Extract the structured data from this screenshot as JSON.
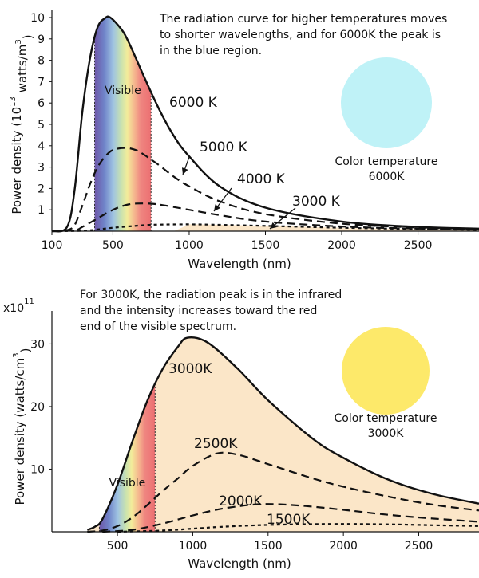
{
  "chart_data": [
    {
      "type": "line",
      "annotation": [
        "The radiation curve for higher temperatures moves",
        "to shorter wavelengths, and for 6000K the peak is",
        "in the blue region."
      ],
      "xlabel": "Wavelength (nm)",
      "ylabel": {
        "base": "Power density (10",
        "exp": "13",
        "mid": " watts/m",
        "exp2": "3",
        "end": ")"
      },
      "xlim": [
        100,
        2900
      ],
      "ylim": [
        0,
        10
      ],
      "xticks": [
        100,
        500,
        1000,
        1500,
        2000,
        2500
      ],
      "yticks": [
        1,
        2,
        3,
        4,
        5,
        6,
        7,
        8,
        9,
        10
      ],
      "visible_band": [
        380,
        750
      ],
      "visible_label": "Visible",
      "swatch_color": "#bff2f7",
      "swatch_caption": [
        "Color temperature",
        "6000K"
      ],
      "series": [
        {
          "name": "6000 K",
          "style": "solid",
          "x": [
            100,
            200,
            250,
            300,
            350,
            400,
            450,
            483,
            550,
            600,
            700,
            800,
            900,
            1000,
            1200,
            1500,
            2000,
            2500,
            2900
          ],
          "y": [
            0,
            0.2,
            2.0,
            5.6,
            8.1,
            9.55,
            9.98,
            10.0,
            9.5,
            8.9,
            7.3,
            5.75,
            4.45,
            3.5,
            2.1,
            1.1,
            0.45,
            0.2,
            0.12
          ]
        },
        {
          "name": "5000 K",
          "style": "dashed",
          "x": [
            100,
            200,
            250,
            300,
            350,
            400,
            450,
            500,
            580,
            650,
            700,
            800,
            900,
            1000,
            1200,
            1500,
            2000,
            2500,
            2900
          ],
          "y": [
            0,
            0.05,
            0.3,
            1.2,
            2.2,
            3.0,
            3.5,
            3.8,
            3.9,
            3.8,
            3.6,
            3.1,
            2.55,
            2.1,
            1.4,
            0.8,
            0.35,
            0.17,
            0.1
          ]
        },
        {
          "name": "4000 K",
          "style": "dashed",
          "x": [
            100,
            250,
            300,
            400,
            500,
            600,
            700,
            800,
            1000,
            1200,
            1500,
            2000,
            2500,
            2900
          ],
          "y": [
            0,
            0.05,
            0.2,
            0.6,
            1.0,
            1.25,
            1.3,
            1.25,
            1.0,
            0.75,
            0.45,
            0.22,
            0.12,
            0.07
          ]
        },
        {
          "name": "3000 K",
          "style": "dotted",
          "x": [
            100,
            300,
            400,
            500,
            700,
            800,
            1000,
            1200,
            1500,
            2000,
            2500,
            2900
          ],
          "y": [
            0,
            0.02,
            0.08,
            0.16,
            0.28,
            0.31,
            0.32,
            0.3,
            0.25,
            0.16,
            0.1,
            0.06
          ]
        }
      ]
    },
    {
      "type": "line",
      "annotation": [
        "For 3000K, the radiation peak is in the infrared",
        "and the intensity increases toward the red",
        "end of the visible spectrum."
      ],
      "xlabel": "Wavelength (nm)",
      "ylabel": {
        "base": "Power density (watts/cm",
        "exp": "3",
        "mid": "",
        "exp2": "",
        "end": ")"
      },
      "y_multiplier": {
        "base": "x10",
        "exp": "11"
      },
      "xlim": [
        65,
        2900
      ],
      "ylim": [
        0,
        34
      ],
      "xticks": [
        500,
        1000,
        1500,
        2000,
        2500
      ],
      "yticks": [
        10,
        20,
        30
      ],
      "visible_band": [
        380,
        750
      ],
      "visible_label": "Visible",
      "swatch_color": "#fde96a",
      "swatch_caption": [
        "Color temperature",
        "3000K"
      ],
      "series": [
        {
          "name": "3000K",
          "style": "solid",
          "x": [
            300,
            350,
            400,
            500,
            600,
            700,
            800,
            900,
            966,
            1100,
            1300,
            1500,
            1800,
            2000,
            2300,
            2600,
            2900
          ],
          "y": [
            0.3,
            0.8,
            2.0,
            7.5,
            14.5,
            21.0,
            26.0,
            29.5,
            31.0,
            30.2,
            26.0,
            21.0,
            14.8,
            11.8,
            8.3,
            6.0,
            4.5
          ]
        },
        {
          "name": "2500K",
          "style": "dashed",
          "x": [
            300,
            400,
            500,
            600,
            700,
            800,
            900,
            1000,
            1159,
            1300,
            1500,
            1800,
            2000,
            2300,
            2600,
            2900
          ],
          "y": [
            0,
            0.2,
            0.9,
            2.3,
            4.3,
            6.5,
            8.5,
            10.5,
            12.5,
            12.3,
            10.8,
            8.5,
            7.2,
            5.6,
            4.3,
            3.4
          ]
        },
        {
          "name": "2000K",
          "style": "dashed",
          "x": [
            400,
            600,
            800,
            1000,
            1200,
            1449,
            1700,
            2000,
            2300,
            2600,
            2900
          ],
          "y": [
            0,
            0.3,
            1.3,
            2.6,
            3.7,
            4.4,
            4.2,
            3.5,
            2.7,
            2.1,
            1.6
          ]
        },
        {
          "name": "1500K",
          "style": "dotted",
          "x": [
            500,
            800,
            1000,
            1200,
            1500,
            1932,
            2300,
            2600,
            2900
          ],
          "y": [
            0,
            0.2,
            0.5,
            0.8,
            1.1,
            1.25,
            1.18,
            1.05,
            0.9
          ]
        }
      ]
    }
  ]
}
